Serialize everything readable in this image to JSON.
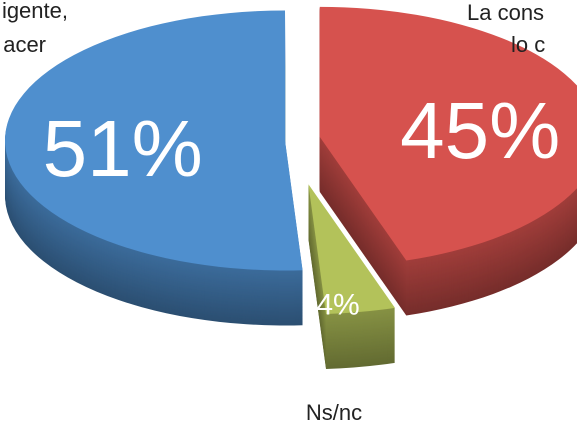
{
  "chart_data": {
    "type": "pie",
    "categories": [
      [
        "igente,",
        "acer"
      ],
      [
        "La cons",
        "lo c"
      ],
      [
        "Ns/nc"
      ]
    ],
    "values": [
      51,
      45,
      4
    ],
    "value_labels": [
      "51%",
      "45%",
      "4%"
    ],
    "colors": [
      "#4f8fce",
      "#d6524e",
      "#b3c25a"
    ]
  }
}
